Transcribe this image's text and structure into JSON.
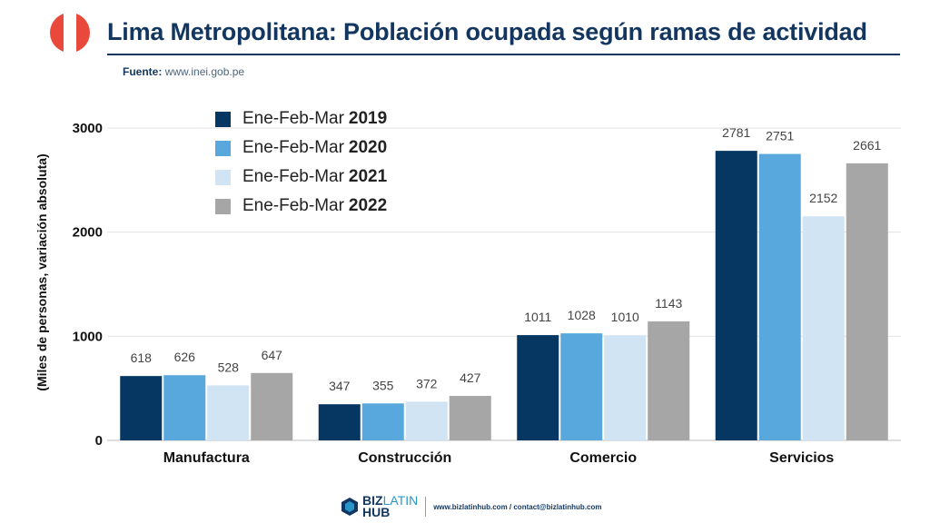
{
  "header": {
    "title": "Lima Metropolitana: Población ocupada según ramas de actividad",
    "source_label": "Fuente:",
    "source_url": "www.inei.gob.pe"
  },
  "colors": {
    "s2019": "#063763",
    "s2020": "#58a8de",
    "s2021": "#d1e4f3",
    "s2022": "#a6a6a6",
    "flag_red": "#e8493a",
    "title": "#12365f"
  },
  "legend": [
    {
      "prefix": "Ene-Feb-Mar",
      "year": "2019"
    },
    {
      "prefix": "Ene-Feb-Mar",
      "year": "2020"
    },
    {
      "prefix": "Ene-Feb-Mar",
      "year": "2021"
    },
    {
      "prefix": "Ene-Feb-Mar",
      "year": "2022"
    }
  ],
  "chart_data": {
    "type": "bar",
    "title": "Lima Metropolitana: Población ocupada según ramas de actividad",
    "xlabel": "",
    "ylabel": "(Miles de personas, variación absoluta)",
    "categories": [
      "Manufactura",
      "Construcción",
      "Comercio",
      "Servicios"
    ],
    "series": [
      {
        "name": "Ene-Feb-Mar 2019",
        "values": [
          618,
          347,
          1011,
          2781
        ]
      },
      {
        "name": "Ene-Feb-Mar 2020",
        "values": [
          626,
          355,
          1028,
          2751
        ]
      },
      {
        "name": "Ene-Feb-Mar 2021",
        "values": [
          528,
          372,
          1010,
          2152
        ]
      },
      {
        "name": "Ene-Feb-Mar 2022",
        "values": [
          647,
          427,
          1143,
          2661
        ]
      }
    ],
    "yticks": [
      0,
      1000,
      2000,
      3000
    ],
    "ytick_labels": [
      "0",
      "1000",
      "2000",
      "3000"
    ],
    "ylim": [
      0,
      3000
    ],
    "grid": true,
    "legend_position": "top-left"
  },
  "footer": {
    "brand_a": "BIZ",
    "brand_b": "LATIN",
    "brand_c": "HUB",
    "contact": "www.bizlatinhub.com / contact@bizlatinhub.com"
  }
}
